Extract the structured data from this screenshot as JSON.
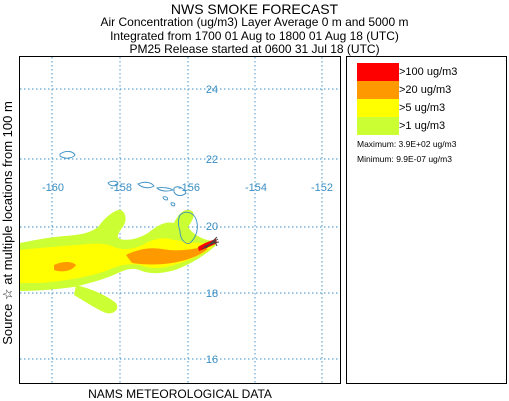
{
  "header": {
    "title": "NWS SMOKE FORECAST",
    "line2": "Air Concentration (ug/m3) Layer Average    0 m and  5000 m",
    "line3": "Integrated from 1700 01 Aug to 1800 01 Aug 18 (UTC)",
    "line4": "PM25 Release started at 0600 31 Jul 18 (UTC)"
  },
  "side_label": "Source ☆    at multiple locations    from   100 m",
  "bottom_label": "NAMS METEOROLOGICAL DATA",
  "map": {
    "lat_labels": [
      "24",
      "22",
      "20",
      "18",
      "16"
    ],
    "lon_labels": [
      "-160",
      "-158",
      "-156",
      "-154",
      "-152"
    ],
    "colors": {
      "gt100": "#ff0000",
      "gt20": "#ff9900",
      "gt5": "#ffff00",
      "gt1": "#ccff33",
      "coast": "#3a8fc4",
      "grid": "#3a8fc4",
      "source": "#444444"
    }
  },
  "legend": {
    "items": [
      {
        "label": ">100 ug/m3",
        "color": "#ff0000"
      },
      {
        "label": ">20 ug/m3",
        "color": "#ff9900"
      },
      {
        "label": ">5 ug/m3",
        "color": "#ffff00"
      },
      {
        "label": ">1 ug/m3",
        "color": "#ccff33"
      }
    ],
    "maximum": "Maximum: 3.9E+02 ug/m3",
    "minimum": "Minimum: 9.9E-07 ug/m3"
  }
}
